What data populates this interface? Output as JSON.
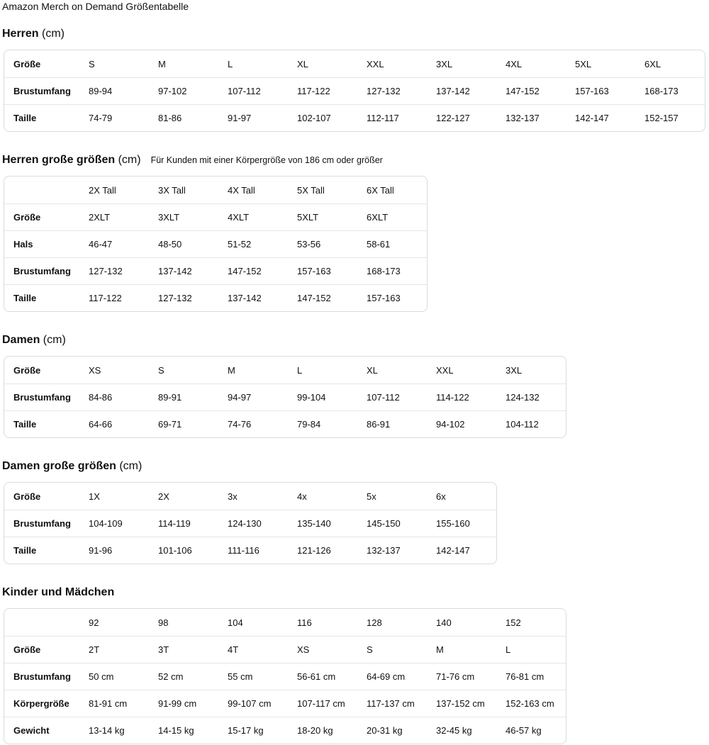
{
  "page_title": "Amazon Merch on Demand Größentabelle",
  "colors": {
    "text_color": "#0f1111",
    "table_border_color": "#d9dcdc",
    "row_divider_color": "#e4e6e6",
    "background_color": "#ffffff"
  },
  "sections": [
    {
      "id": "herren",
      "title": "Herren",
      "unit": "(cm)",
      "note": "",
      "rows": [
        [
          "Größe",
          "S",
          "M",
          "L",
          "XL",
          "XXL",
          "3XL",
          "4XL",
          "5XL",
          "6XL"
        ],
        [
          "Brustumfang",
          "89-94",
          "97-102",
          "107-112",
          "117-122",
          "127-132",
          "137-142",
          "147-152",
          "157-163",
          "168-173"
        ],
        [
          "Taille",
          "74-79",
          "81-86",
          "91-97",
          "102-107",
          "112-117",
          "122-127",
          "132-137",
          "142-147",
          "152-157"
        ]
      ]
    },
    {
      "id": "herren-grosse-groessen",
      "title": "Herren große größen",
      "unit": "(cm)",
      "note": "Für Kunden mit einer Körpergröße von 186 cm oder größer",
      "rows": [
        [
          "",
          "2X Tall",
          "3X Tall",
          "4X Tall",
          "5X Tall",
          "6X Tall"
        ],
        [
          "Größe",
          "2XLT",
          "3XLT",
          "4XLT",
          "5XLT",
          "6XLT"
        ],
        [
          "Hals",
          "46-47",
          "48-50",
          "51-52",
          "53-56",
          "58-61"
        ],
        [
          "Brustumfang",
          "127-132",
          "137-142",
          "147-152",
          "157-163",
          "168-173"
        ],
        [
          "Taille",
          "117-122",
          "127-132",
          "137-142",
          "147-152",
          "157-163"
        ]
      ]
    },
    {
      "id": "damen",
      "title": "Damen",
      "unit": "(cm)",
      "note": "",
      "rows": [
        [
          "Größe",
          "XS",
          "S",
          "M",
          "L",
          "XL",
          "XXL",
          "3XL"
        ],
        [
          "Brustumfang",
          "84-86",
          "89-91",
          "94-97",
          "99-104",
          "107-112",
          "114-122",
          "124-132"
        ],
        [
          "Taille",
          "64-66",
          "69-71",
          "74-76",
          "79-84",
          "86-91",
          "94-102",
          "104-112"
        ]
      ]
    },
    {
      "id": "damen-grosse-groessen",
      "title": "Damen große größen",
      "unit": "(cm)",
      "note": "",
      "rows": [
        [
          "Größe",
          "1X",
          "2X",
          "3x",
          "4x",
          "5x",
          "6x"
        ],
        [
          "Brustumfang",
          "104-109",
          "114-119",
          "124-130",
          "135-140",
          "145-150",
          "155-160"
        ],
        [
          "Taille",
          "91-96",
          "101-106",
          "111-116",
          "121-126",
          "132-137",
          "142-147"
        ]
      ]
    },
    {
      "id": "kinder-und-maedchen",
      "title": "Kinder und Mädchen",
      "unit": "",
      "note": "",
      "rows": [
        [
          "",
          "92",
          "98",
          "104",
          "116",
          "128",
          "140",
          "152"
        ],
        [
          "Größe",
          "2T",
          "3T",
          "4T",
          "XS",
          "S",
          "M",
          "L"
        ],
        [
          "Brustumfang",
          "50 cm",
          "52 cm",
          "55 cm",
          "56-61 cm",
          "64-69 cm",
          "71-76 cm",
          "76-81 cm"
        ],
        [
          "Körpergröße",
          "81-91 cm",
          "91-99 cm",
          "99-107 cm",
          "107-117 cm",
          "117-137 cm",
          "137-152 cm",
          "152-163 cm"
        ],
        [
          "Gewicht",
          "13-14 kg",
          "14-15 kg",
          "15-17 kg",
          "18-20 kg",
          "20-31 kg",
          "32-45 kg",
          "46-57 kg"
        ]
      ]
    }
  ]
}
